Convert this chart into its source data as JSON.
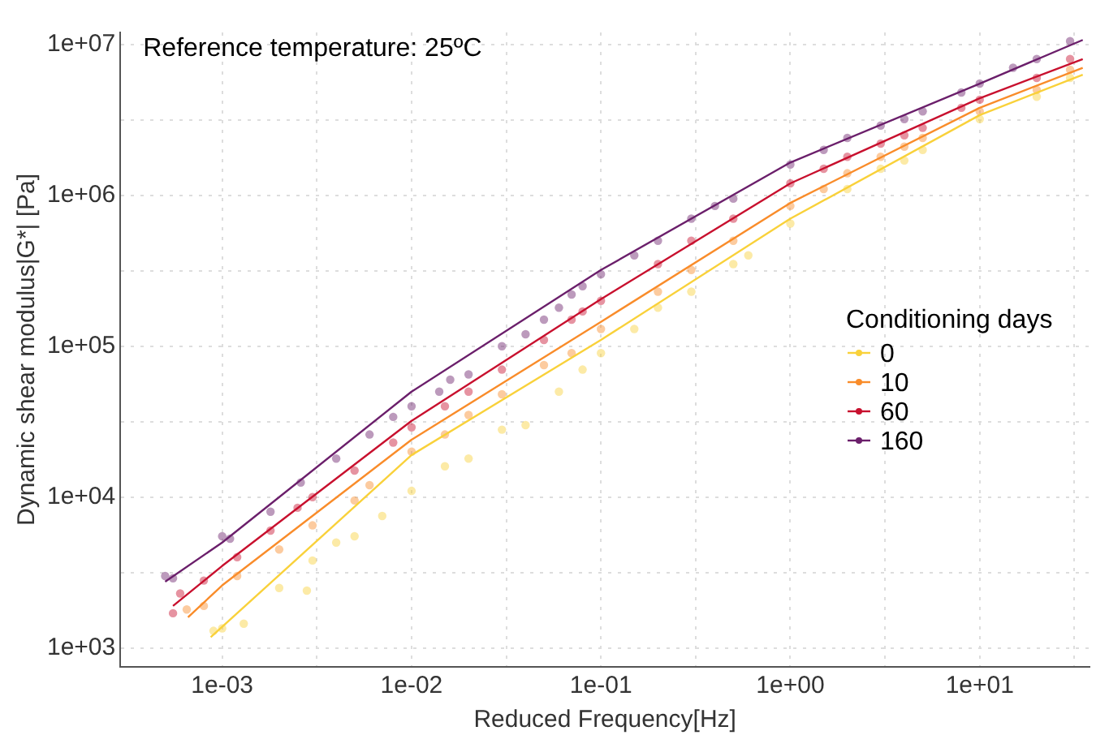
{
  "chart_data": {
    "type": "scatter",
    "xlabel": "Reduced Frequency[Hz]",
    "ylabel": "Dynamic shear modulus|G*| [Pa]",
    "legend_title": "Conditioning days",
    "annotations": [
      "Reference temperature: 25ºC"
    ],
    "log": "xy",
    "grid": true,
    "legend": "right",
    "marker": "circle",
    "xlim": [
      0.00029,
      38
    ],
    "ylim": [
      750,
      12000000
    ],
    "xticks": [
      {
        "value": 0.001,
        "label": "1e-03"
      },
      {
        "value": 0.00316,
        "label": null
      },
      {
        "value": 0.01,
        "label": "1e-02"
      },
      {
        "value": 0.0316,
        "label": null
      },
      {
        "value": 0.1,
        "label": "1e-01"
      },
      {
        "value": 0.316,
        "label": null
      },
      {
        "value": 1,
        "label": "1e+00"
      },
      {
        "value": 3.16,
        "label": null
      },
      {
        "value": 10,
        "label": "1e+01"
      },
      {
        "value": 31.6,
        "label": null
      }
    ],
    "yticks": [
      {
        "value": 1000,
        "label": "1e+03"
      },
      {
        "value": 3160,
        "label": null
      },
      {
        "value": 10000,
        "label": "1e+04"
      },
      {
        "value": 31600,
        "label": null
      },
      {
        "value": 100000,
        "label": "1e+05"
      },
      {
        "value": 316000,
        "label": null
      },
      {
        "value": 1000000,
        "label": "1e+06"
      },
      {
        "value": 3160000,
        "label": null
      },
      {
        "value": 10000000,
        "label": "1e+07"
      }
    ],
    "series": [
      {
        "name": "0",
        "color": "#f9d13a",
        "x": [
          0.0009,
          0.001,
          0.0013,
          0.002,
          0.0028,
          0.003,
          0.004,
          0.005,
          0.007,
          0.01,
          0.015,
          0.02,
          0.03,
          0.04,
          0.06,
          0.08,
          0.1,
          0.15,
          0.2,
          0.3,
          0.5,
          0.6,
          1,
          2,
          3,
          4,
          5,
          10,
          20,
          30
        ],
        "values": [
          1300,
          1350,
          1450,
          2500,
          2400,
          3800,
          5000,
          5500,
          7500,
          11000,
          16000,
          18000,
          28000,
          30000,
          50000,
          70000,
          90000,
          130000,
          180000,
          230000,
          350000,
          400000,
          650000,
          1100000,
          1500000,
          1700000,
          2000000,
          3200000,
          4500000,
          6000000
        ]
      },
      {
        "name": "10",
        "color": "#f98c2a",
        "x": [
          0.00065,
          0.0008,
          0.0012,
          0.002,
          0.003,
          0.005,
          0.006,
          0.01,
          0.015,
          0.02,
          0.03,
          0.05,
          0.07,
          0.1,
          0.2,
          0.3,
          0.5,
          1,
          1.5,
          2,
          3,
          4,
          5,
          10,
          20,
          30
        ],
        "values": [
          1800,
          1900,
          3000,
          4500,
          6500,
          9500,
          12000,
          20000,
          26000,
          35000,
          48000,
          75000,
          90000,
          130000,
          230000,
          320000,
          500000,
          850000,
          1100000,
          1400000,
          1800000,
          2100000,
          2400000,
          3600000,
          5000000,
          6800000
        ]
      },
      {
        "name": "60",
        "color": "#c8102e",
        "x": [
          0.00055,
          0.0006,
          0.0008,
          0.0012,
          0.0018,
          0.0025,
          0.003,
          0.005,
          0.008,
          0.01,
          0.015,
          0.02,
          0.03,
          0.05,
          0.07,
          0.08,
          0.1,
          0.2,
          0.3,
          0.5,
          1,
          1.5,
          2,
          3,
          4,
          5,
          8,
          10,
          20,
          30
        ],
        "values": [
          1700,
          2300,
          2800,
          4000,
          6000,
          8500,
          10000,
          15000,
          23000,
          29000,
          40000,
          50000,
          70000,
          110000,
          150000,
          170000,
          200000,
          350000,
          500000,
          700000,
          1200000,
          1500000,
          1800000,
          2200000,
          2500000,
          2800000,
          3800000,
          4300000,
          6000000,
          8000000
        ]
      },
      {
        "name": "160",
        "color": "#6b1f6b",
        "x": [
          0.0005,
          0.00055,
          0.001,
          0.0011,
          0.0018,
          0.0026,
          0.004,
          0.006,
          0.008,
          0.01,
          0.014,
          0.016,
          0.02,
          0.03,
          0.04,
          0.05,
          0.06,
          0.07,
          0.08,
          0.1,
          0.15,
          0.2,
          0.3,
          0.4,
          0.5,
          1,
          1.5,
          2,
          3,
          4,
          5,
          8,
          10,
          15,
          20,
          30
        ],
        "values": [
          3000,
          2900,
          5500,
          5300,
          8000,
          12500,
          18000,
          26000,
          34000,
          40000,
          50000,
          60000,
          65000,
          100000,
          120000,
          150000,
          180000,
          220000,
          250000,
          300000,
          400000,
          500000,
          700000,
          850000,
          950000,
          1600000,
          2000000,
          2400000,
          2900000,
          3200000,
          3600000,
          4800000,
          5500000,
          7000000,
          8000000,
          10500000
        ]
      },
      {
        "type": "line",
        "marker": "none",
        "color": "#f9d13a",
        "x": [
          0.00087,
          0.01,
          0.1,
          1,
          10,
          35
        ],
        "values": [
          1180,
          19000,
          110000,
          700000,
          3400000,
          6300000
        ]
      },
      {
        "type": "line",
        "marker": "none",
        "color": "#f98c2a",
        "x": [
          0.00066,
          0.001,
          0.01,
          0.1,
          1,
          10,
          35
        ],
        "values": [
          1600,
          2600,
          24000,
          145000,
          890000,
          3800000,
          7000000
        ]
      },
      {
        "type": "line",
        "marker": "none",
        "color": "#c8102e",
        "x": [
          0.00055,
          0.001,
          0.01,
          0.1,
          1,
          10,
          35
        ],
        "values": [
          1900,
          3500,
          32000,
          205000,
          1200000,
          4400000,
          8000000
        ]
      },
      {
        "type": "line",
        "marker": "none",
        "color": "#6b1f6b",
        "x": [
          0.0005,
          0.001,
          0.01,
          0.1,
          1,
          10,
          35
        ],
        "values": [
          2750,
          5000,
          50000,
          320000,
          1650000,
          5500000,
          10700000
        ]
      }
    ]
  }
}
